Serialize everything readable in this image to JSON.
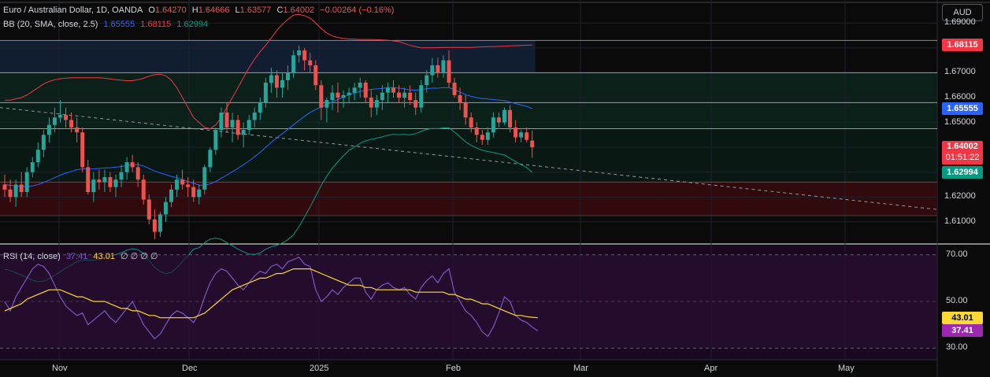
{
  "header": {
    "symbol": "Euro / Australian Dollar, 1D, OANDA",
    "o_label": "O",
    "o": "1.64270",
    "h_label": "H",
    "h": "1.64666",
    "l_label": "L",
    "l": "1.63577",
    "c_label": "C",
    "c": "1.64002",
    "change": "−0.00264 (−0.16%)"
  },
  "bb_legend": {
    "label": "BB (20, SMA, close, 2.5)",
    "basis": "1.65555",
    "upper": "1.68115",
    "lower": "1.62994"
  },
  "rsi_legend": {
    "label": "RSI (14, close)",
    "rsi": "37.41",
    "ma": "43.01",
    "extra": "∅ ∅ ∅ ∅"
  },
  "currency_button": "AUD",
  "countdown": "01:51:22",
  "colors": {
    "up": "#26a69a",
    "down": "#ef5350",
    "bb_basis": "#2962ff",
    "bb_upper": "#f23645",
    "bb_lower": "#089981",
    "rsi": "#7e57c2",
    "rsi_ma": "#fdd835",
    "price_tag": "#f23645",
    "upper_tag": "#f23645",
    "basis_tag": "#2962ff",
    "lower_tag": "#089981"
  },
  "chart_data": {
    "type": "candlestick",
    "price_axis": {
      "ticks": [
        "1.69000",
        "1.68000",
        "1.67000",
        "1.66000",
        "1.65000",
        "1.64000",
        "1.63000",
        "1.62000",
        "1.61000"
      ],
      "ylim": [
        1.603,
        1.698
      ]
    },
    "x_axis": {
      "labels": [
        "Nov",
        "Dec",
        "2025",
        "Feb",
        "Mar",
        "Apr",
        "May"
      ],
      "dates": [
        "2024-11-01",
        "2024-12-01",
        "2025-01-01",
        "2025-02-01",
        "2025-03-01",
        "2025-04-01",
        "2025-05-01"
      ]
    },
    "axis_tags": {
      "upper": "1.68115",
      "basis": "1.65555",
      "last": "1.64002",
      "lower": "1.62994",
      "rsi_ma": "43.01",
      "rsi": "37.41"
    },
    "horizontal_levels": [
      1.683,
      1.67,
      1.658,
      1.6475,
      1.626,
      1.6125
    ],
    "candles": [
      [
        1.625,
        1.629,
        1.62,
        1.623
      ],
      [
        1.623,
        1.627,
        1.618,
        1.62
      ],
      [
        1.62,
        1.627,
        1.616,
        1.625
      ],
      [
        1.625,
        1.63,
        1.62,
        1.622
      ],
      [
        1.622,
        1.632,
        1.62,
        1.63
      ],
      [
        1.63,
        1.636,
        1.628,
        1.634
      ],
      [
        1.634,
        1.642,
        1.632,
        1.639
      ],
      [
        1.639,
        1.647,
        1.636,
        1.645
      ],
      [
        1.645,
        1.652,
        1.642,
        1.649
      ],
      [
        1.649,
        1.656,
        1.646,
        1.652
      ],
      [
        1.652,
        1.659,
        1.65,
        1.653
      ],
      [
        1.653,
        1.656,
        1.648,
        1.651
      ],
      [
        1.651,
        1.654,
        1.646,
        1.648
      ],
      [
        1.648,
        1.652,
        1.642,
        1.646
      ],
      [
        1.646,
        1.648,
        1.63,
        1.632
      ],
      [
        1.632,
        1.635,
        1.621,
        1.622
      ],
      [
        1.622,
        1.63,
        1.618,
        1.627
      ],
      [
        1.627,
        1.631,
        1.623,
        1.626
      ],
      [
        1.626,
        1.631,
        1.622,
        1.628
      ],
      [
        1.628,
        1.63,
        1.622,
        1.624
      ],
      [
        1.624,
        1.629,
        1.62,
        1.627
      ],
      [
        1.627,
        1.633,
        1.624,
        1.63
      ],
      [
        1.63,
        1.636,
        1.627,
        1.634
      ],
      [
        1.634,
        1.637,
        1.63,
        1.632
      ],
      [
        1.632,
        1.634,
        1.624,
        1.627
      ],
      [
        1.627,
        1.629,
        1.617,
        1.619
      ],
      [
        1.619,
        1.621,
        1.609,
        1.611
      ],
      [
        1.611,
        1.615,
        1.603,
        1.606
      ],
      [
        1.606,
        1.614,
        1.604,
        1.613
      ],
      [
        1.613,
        1.62,
        1.61,
        1.618
      ],
      [
        1.618,
        1.625,
        1.616,
        1.623
      ],
      [
        1.623,
        1.629,
        1.62,
        1.627
      ],
      [
        1.627,
        1.631,
        1.623,
        1.625
      ],
      [
        1.625,
        1.628,
        1.62,
        1.624
      ],
      [
        1.624,
        1.627,
        1.618,
        1.62
      ],
      [
        1.62,
        1.625,
        1.617,
        1.623
      ],
      [
        1.623,
        1.633,
        1.621,
        1.632
      ],
      [
        1.632,
        1.64,
        1.63,
        1.639
      ],
      [
        1.639,
        1.648,
        1.637,
        1.647
      ],
      [
        1.647,
        1.656,
        1.644,
        1.654
      ],
      [
        1.654,
        1.658,
        1.646,
        1.648
      ],
      [
        1.648,
        1.654,
        1.642,
        1.651
      ],
      [
        1.651,
        1.653,
        1.643,
        1.645
      ],
      [
        1.645,
        1.65,
        1.64,
        1.647
      ],
      [
        1.647,
        1.653,
        1.645,
        1.651
      ],
      [
        1.651,
        1.656,
        1.648,
        1.654
      ],
      [
        1.654,
        1.66,
        1.651,
        1.658
      ],
      [
        1.658,
        1.668,
        1.656,
        1.666
      ],
      [
        1.666,
        1.672,
        1.662,
        1.669
      ],
      [
        1.669,
        1.671,
        1.66,
        1.664
      ],
      [
        1.664,
        1.67,
        1.66,
        1.667
      ],
      [
        1.667,
        1.673,
        1.663,
        1.67
      ],
      [
        1.67,
        1.679,
        1.668,
        1.677
      ],
      [
        1.677,
        1.681,
        1.674,
        1.679
      ],
      [
        1.679,
        1.68,
        1.671,
        1.675
      ],
      [
        1.675,
        1.678,
        1.67,
        1.673
      ],
      [
        1.673,
        1.675,
        1.663,
        1.665
      ],
      [
        1.665,
        1.667,
        1.651,
        1.656
      ],
      [
        1.656,
        1.66,
        1.65,
        1.659
      ],
      [
        1.659,
        1.665,
        1.655,
        1.662
      ],
      [
        1.662,
        1.666,
        1.654,
        1.66
      ],
      [
        1.66,
        1.663,
        1.656,
        1.661
      ],
      [
        1.661,
        1.664,
        1.658,
        1.662
      ],
      [
        1.662,
        1.666,
        1.659,
        1.664
      ],
      [
        1.664,
        1.668,
        1.66,
        1.666
      ],
      [
        1.666,
        1.667,
        1.658,
        1.66
      ],
      [
        1.66,
        1.663,
        1.652,
        1.656
      ],
      [
        1.656,
        1.661,
        1.653,
        1.659
      ],
      [
        1.659,
        1.665,
        1.655,
        1.662
      ],
      [
        1.662,
        1.666,
        1.658,
        1.664
      ],
      [
        1.664,
        1.667,
        1.66,
        1.662
      ],
      [
        1.662,
        1.665,
        1.658,
        1.66
      ],
      [
        1.66,
        1.664,
        1.656,
        1.662
      ],
      [
        1.662,
        1.665,
        1.657,
        1.659
      ],
      [
        1.659,
        1.662,
        1.653,
        1.656
      ],
      [
        1.656,
        1.667,
        1.654,
        1.665
      ],
      [
        1.665,
        1.671,
        1.662,
        1.669
      ],
      [
        1.669,
        1.676,
        1.666,
        1.673
      ],
      [
        1.673,
        1.676,
        1.668,
        1.67
      ],
      [
        1.67,
        1.677,
        1.668,
        1.675
      ],
      [
        1.675,
        1.679,
        1.664,
        1.666
      ],
      [
        1.666,
        1.668,
        1.66,
        1.661
      ],
      [
        1.661,
        1.664,
        1.655,
        1.658
      ],
      [
        1.658,
        1.661,
        1.649,
        1.652
      ],
      [
        1.652,
        1.654,
        1.646,
        1.648
      ],
      [
        1.648,
        1.65,
        1.642,
        1.645
      ],
      [
        1.645,
        1.647,
        1.641,
        1.643
      ],
      [
        1.643,
        1.648,
        1.641,
        1.646
      ],
      [
        1.646,
        1.654,
        1.644,
        1.652
      ],
      [
        1.652,
        1.654,
        1.648,
        1.65
      ],
      [
        1.65,
        1.656,
        1.649,
        1.655
      ],
      [
        1.655,
        1.657,
        1.646,
        1.648
      ],
      [
        1.648,
        1.651,
        1.642,
        1.644
      ],
      [
        1.644,
        1.647,
        1.642,
        1.646
      ],
      [
        1.646,
        1.648,
        1.642,
        1.643
      ],
      [
        1.6427,
        1.6467,
        1.6358,
        1.64
      ]
    ],
    "bb_basis": [
      1.625,
      1.6247,
      1.6245,
      1.6243,
      1.6243,
      1.6245,
      1.625,
      1.6258,
      1.6268,
      1.6278,
      1.6288,
      1.6296,
      1.6303,
      1.631,
      1.6313,
      1.6313,
      1.6313,
      1.6315,
      1.6317,
      1.6318,
      1.632,
      1.6323,
      1.6327,
      1.633,
      1.633,
      1.6325,
      1.6315,
      1.6305,
      1.6297,
      1.629,
      1.6283,
      1.6278,
      1.627,
      1.6262,
      1.6255,
      1.6248,
      1.6248,
      1.6253,
      1.6262,
      1.6275,
      1.6288,
      1.6302,
      1.6315,
      1.633,
      1.6345,
      1.6362,
      1.638,
      1.64,
      1.642,
      1.6438,
      1.6455,
      1.6472,
      1.649,
      1.6508,
      1.6525,
      1.654,
      1.6552,
      1.6562,
      1.6572,
      1.6582,
      1.6592,
      1.6602,
      1.6612,
      1.6618,
      1.6625,
      1.663,
      1.6633,
      1.6635,
      1.6637,
      1.664,
      1.664,
      1.6638,
      1.6635,
      1.663,
      1.663,
      1.6632,
      1.6636,
      1.6638,
      1.6638,
      1.664,
      1.664,
      1.6632,
      1.6622,
      1.6612,
      1.6605,
      1.66,
      1.6596,
      1.6594,
      1.6592,
      1.659,
      1.6588,
      1.6582,
      1.6576,
      1.657,
      1.6565,
      1.6556
    ],
    "bb_upper": [
      1.659,
      1.659,
      1.6595,
      1.66,
      1.661,
      1.6625,
      1.664,
      1.6655,
      1.6665,
      1.6672,
      1.6676,
      1.6678,
      1.668,
      1.668,
      1.668,
      1.668,
      1.668,
      1.668,
      1.6678,
      1.6675,
      1.6672,
      1.667,
      1.6668,
      1.6668,
      1.6672,
      1.6678,
      1.6686,
      1.6692,
      1.6694,
      1.6688,
      1.667,
      1.664,
      1.66,
      1.656,
      1.652,
      1.65,
      1.648,
      1.6475,
      1.649,
      1.652,
      1.656,
      1.66,
      1.664,
      1.668,
      1.672,
      1.6755,
      1.6785,
      1.681,
      1.684,
      1.687,
      1.6895,
      1.6915,
      1.6932,
      1.6935,
      1.693,
      1.692,
      1.69,
      1.6878,
      1.686,
      1.6848,
      1.6842,
      1.6838,
      1.6836,
      1.6835,
      1.6834,
      1.6834,
      1.6834,
      1.6833,
      1.6832,
      1.6831,
      1.6828,
      1.6825,
      1.6818,
      1.681,
      1.6805,
      1.68,
      1.68,
      1.68,
      1.6801,
      1.6802,
      1.6802,
      1.6802,
      1.6802,
      1.6802,
      1.6802,
      1.6803,
      1.6804,
      1.6805,
      1.6805,
      1.6806,
      1.6807,
      1.6808,
      1.6809,
      1.681,
      1.6811,
      1.6812
    ],
    "bb_lower": [
      1.591,
      1.5904,
      1.5895,
      1.5886,
      1.5876,
      1.5865,
      1.586,
      1.5861,
      1.5871,
      1.5884,
      1.59,
      1.5914,
      1.5926,
      1.594,
      1.5946,
      1.5946,
      1.5946,
      1.595,
      1.5956,
      1.5961,
      1.5968,
      1.5976,
      1.5986,
      1.5992,
      1.5988,
      1.5972,
      1.5944,
      1.5918,
      1.59,
      1.5892,
      1.5896,
      1.5916,
      1.594,
      1.5964,
      1.599,
      1.5996,
      1.6016,
      1.6031,
      1.6034,
      1.603,
      1.6016,
      1.6004,
      1.599,
      1.598,
      1.597,
      1.5969,
      1.5975,
      1.599,
      1.6,
      1.6006,
      1.6015,
      1.6029,
      1.6048,
      1.6081,
      1.612,
      1.616,
      1.6204,
      1.6246,
      1.6284,
      1.6316,
      1.6342,
      1.6366,
      1.6388,
      1.6401,
      1.6416,
      1.6426,
      1.6432,
      1.6437,
      1.6442,
      1.6449,
      1.6452,
      1.6451,
      1.6452,
      1.645,
      1.6455,
      1.6464,
      1.6472,
      1.6476,
      1.6475,
      1.6478,
      1.6478,
      1.6462,
      1.6442,
      1.6422,
      1.6408,
      1.6397,
      1.6388,
      1.6383,
      1.6379,
      1.6374,
      1.6369,
      1.6356,
      1.6343,
      1.633,
      1.6319,
      1.6299
    ],
    "trend_line": {
      "from": [
        1.656
      ],
      "to_price_at_right": 1.615
    },
    "rsi_axis": {
      "ticks": [
        "70.00",
        "50.00",
        "30.00"
      ],
      "ylim": [
        25,
        74
      ]
    },
    "rsi": [
      50,
      46,
      52,
      56,
      60,
      64,
      66,
      65,
      62,
      57,
      52,
      48,
      46,
      44,
      45,
      40,
      42,
      44,
      46,
      43,
      41,
      44,
      47,
      50,
      45,
      40,
      37,
      34,
      36,
      40,
      44,
      46,
      45,
      43,
      41,
      45,
      52,
      58,
      62,
      64,
      63,
      60,
      57,
      55,
      58,
      61,
      63,
      62,
      65,
      66,
      64,
      67,
      68,
      69,
      66,
      65,
      55,
      50,
      52,
      55,
      53,
      56,
      58,
      60,
      60,
      54,
      51,
      55,
      57,
      58,
      56,
      55,
      56,
      53,
      51,
      56,
      59,
      61,
      58,
      62,
      64,
      54,
      50,
      46,
      44,
      41,
      37,
      35,
      39,
      45,
      52,
      50,
      44,
      42,
      41,
      39,
      37.41
    ],
    "rsi_ma": [
      46,
      47,
      48,
      49,
      51,
      52,
      53,
      54,
      55,
      55,
      55,
      54,
      53,
      52,
      52,
      51,
      50,
      50,
      50,
      49,
      48,
      47,
      47,
      46,
      46,
      45,
      44,
      44,
      43,
      43,
      43,
      43,
      43,
      43,
      43,
      44,
      45,
      47,
      49,
      51,
      53,
      55,
      56,
      57,
      58,
      59,
      60,
      60,
      61,
      62,
      62,
      63,
      64,
      64,
      64,
      64,
      63,
      62,
      61,
      60,
      59,
      58,
      57,
      57,
      57,
      56,
      56,
      55,
      55,
      55,
      55,
      55,
      55,
      55,
      54,
      54,
      54,
      54,
      54,
      54,
      53,
      53,
      52,
      51,
      51,
      50,
      49,
      49,
      48,
      47,
      46,
      45,
      44,
      44,
      43.5,
      43.2,
      43.01
    ]
  }
}
